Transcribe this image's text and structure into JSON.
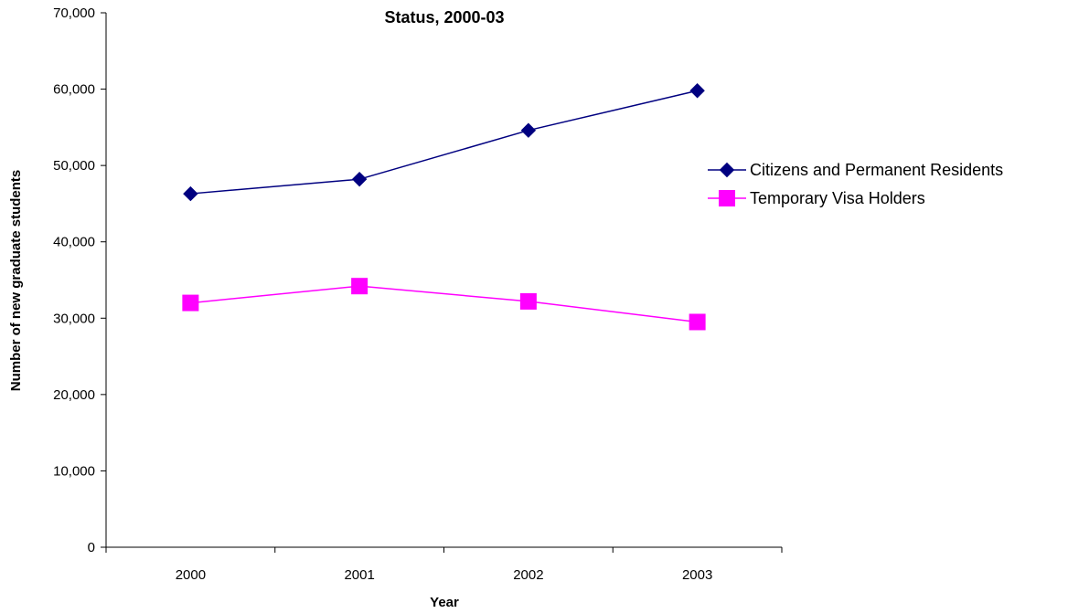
{
  "chart_data": {
    "type": "line",
    "title": "Status, 2000-03",
    "xlabel": "Year",
    "ylabel": "Number of new graduate students",
    "categories": [
      "2000",
      "2001",
      "2002",
      "2003"
    ],
    "ylim": [
      0,
      70000
    ],
    "yticks": [
      0,
      10000,
      20000,
      30000,
      40000,
      50000,
      60000,
      70000
    ],
    "ytick_labels": [
      "0",
      "10,000",
      "20,000",
      "30,000",
      "40,000",
      "50,000",
      "60,000",
      "70,000"
    ],
    "grid": false,
    "legend_position": "right",
    "series": [
      {
        "name": "Citizens and Permanent Residents",
        "color": "#000080",
        "marker": "diamond",
        "values": [
          46300,
          48200,
          54600,
          59800
        ]
      },
      {
        "name": "Temporary Visa Holders",
        "color": "#FF00FF",
        "marker": "square",
        "values": [
          32000,
          34200,
          32200,
          29500
        ]
      }
    ]
  }
}
